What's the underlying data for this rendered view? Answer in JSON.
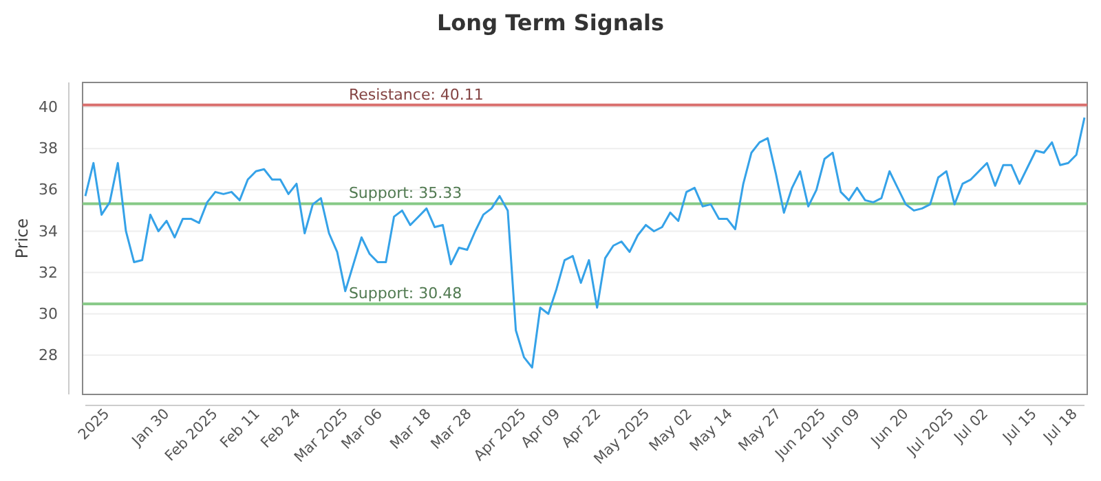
{
  "chart_data": {
    "type": "line",
    "title": "Long Term Signals",
    "ylabel": "Price",
    "categories": [
      null,
      "2025",
      null,
      null,
      null,
      null,
      null,
      null,
      "Jan 30",
      null,
      null,
      null,
      null,
      "Feb 2025",
      null,
      null,
      null,
      null,
      null,
      "Feb 11",
      null,
      null,
      null,
      null,
      "Feb 24",
      null,
      null,
      null,
      null,
      "Mar 2025",
      null,
      null,
      null,
      null,
      "Mar 06",
      null,
      null,
      null,
      null,
      null,
      "Mar 18",
      null,
      null,
      null,
      null,
      "Mar 28",
      null,
      null,
      null,
      null,
      null,
      "Apr 2025",
      null,
      null,
      null,
      null,
      "Apr 09",
      null,
      null,
      null,
      null,
      "Apr 22",
      null,
      null,
      null,
      null,
      "May 2025",
      null,
      null,
      null,
      null,
      null,
      "May 02",
      null,
      null,
      null,
      null,
      "May 14",
      null,
      null,
      null,
      null,
      null,
      "May 27",
      null,
      null,
      null,
      null,
      "Jun 2025",
      null,
      null,
      null,
      null,
      "Jun 09",
      null,
      null,
      null,
      null,
      null,
      "Jun 20",
      null,
      null,
      null,
      null,
      "Jul 2025",
      null,
      null,
      null,
      null,
      "Jul 02",
      null,
      null,
      null,
      null,
      null,
      "Jul 15",
      null,
      null,
      null,
      null,
      "Jul 18",
      null,
      null,
      null
    ],
    "series": [
      {
        "color": "#35a2e8",
        "values": [
          35.7,
          37.3,
          34.8,
          35.4,
          37.3,
          34.0,
          32.5,
          32.6,
          34.8,
          34.0,
          34.5,
          33.7,
          34.6,
          34.6,
          34.4,
          35.4,
          35.9,
          35.8,
          35.9,
          35.5,
          36.5,
          36.9,
          37.0,
          36.5,
          36.5,
          35.8,
          36.3,
          33.9,
          35.3,
          35.6,
          33.9,
          33.0,
          31.1,
          32.4,
          33.7,
          32.9,
          32.5,
          32.5,
          34.7,
          35.0,
          34.3,
          34.7,
          35.1,
          34.2,
          34.3,
          32.4,
          33.2,
          33.1,
          34.0,
          34.8,
          35.1,
          35.7,
          35.0,
          29.2,
          27.9,
          27.4,
          30.3,
          30.0,
          31.2,
          32.6,
          32.8,
          31.5,
          32.6,
          30.3,
          32.7,
          33.3,
          33.5,
          33.0,
          33.8,
          34.3,
          34.0,
          34.2,
          34.9,
          34.5,
          35.9,
          36.1,
          35.2,
          35.3,
          34.6,
          34.6,
          34.1,
          36.3,
          37.8,
          38.3,
          38.5,
          36.8,
          34.9,
          36.1,
          36.9,
          35.2,
          36.0,
          37.5,
          37.8,
          35.9,
          35.5,
          36.1,
          35.5,
          35.4,
          35.6,
          36.9,
          36.1,
          35.3,
          35.0,
          35.1,
          35.3,
          36.6,
          36.9,
          35.3,
          36.3,
          36.5,
          36.9,
          37.3,
          36.2,
          37.2,
          37.2,
          36.3,
          37.1,
          37.9,
          37.8,
          38.3,
          37.2,
          37.3,
          37.7,
          39.5
        ]
      }
    ],
    "ylim": [
      26.1,
      41.2
    ],
    "yticks": [
      28,
      30,
      32,
      34,
      36,
      38,
      40
    ],
    "grid": "y",
    "marker": "none",
    "line_style": "solid",
    "ref_lines": [
      {
        "axis": "y",
        "value": 40.11,
        "label": "Resistance: 40.11",
        "color": "#d9706e"
      },
      {
        "axis": "y",
        "value": 35.33,
        "label": "Support: 35.33",
        "color": "#86c986"
      },
      {
        "axis": "y",
        "value": 30.48,
        "label": "Support: 30.48",
        "color": "#86c986"
      }
    ]
  }
}
